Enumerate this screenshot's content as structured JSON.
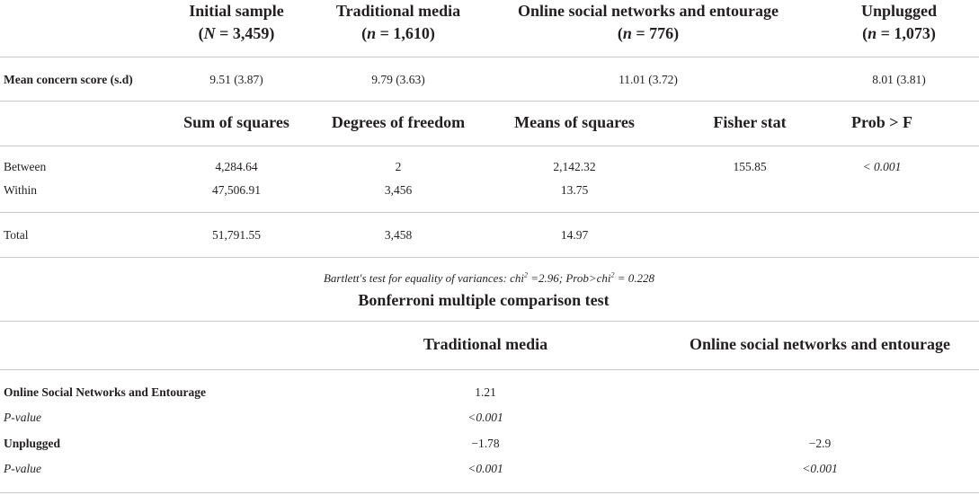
{
  "section1": {
    "columns": [
      {
        "line1": "Initial sample",
        "line2_pre": "(",
        "var": "N",
        "line2_post": " = 3,459)"
      },
      {
        "line1": "Traditional media",
        "line2_pre": "(",
        "var": "n",
        "line2_post": " = 1,610)"
      },
      {
        "line1": "Online social networks and entourage",
        "line2_pre": "(",
        "var": "n",
        "line2_post": " = 776)"
      },
      {
        "line1": "Unplugged",
        "line2_pre": "(",
        "var": "n",
        "line2_post": " = 1,073)"
      }
    ],
    "row_label": "Mean concern score (s.d)",
    "values": [
      "9.51 (3.87)",
      "9.79 (3.63)",
      "11.01 (3.72)",
      "8.01 (3.81)"
    ]
  },
  "anova": {
    "headers": [
      "Sum of squares",
      "Degrees of freedom",
      "Means of squares",
      "Fisher stat",
      "Prob > F"
    ],
    "rows": [
      {
        "label": "Between",
        "values": [
          "4,284.64",
          "2",
          "2,142.32",
          "155.85",
          "< 0.001"
        ]
      },
      {
        "label": "Within",
        "values": [
          "47,506.91",
          "3,456",
          "13.75",
          "",
          ""
        ]
      },
      {
        "label": "Total",
        "values": [
          "51,791.55",
          "3,458",
          "14.97",
          "",
          ""
        ]
      }
    ]
  },
  "bartlett": {
    "p1": "Bartlett's test for equality of variances: chi",
    "sup1": "2",
    "p2": " =2.96; Prob>chi",
    "sup2": "2",
    "p3": " = 0.228"
  },
  "bonferroni": {
    "title": "Bonferroni multiple comparison test",
    "headers": [
      "Traditional media",
      "Online social networks and entourage"
    ],
    "rows": [
      {
        "label": "Online Social Networks and Entourage",
        "values": [
          "1.21",
          ""
        ],
        "bold": true
      },
      {
        "label": "P-value",
        "values": [
          "<0.001",
          ""
        ],
        "italic": true
      },
      {
        "label": "Unplugged",
        "values": [
          "−1.78",
          "−2.9"
        ],
        "bold": true
      },
      {
        "label": "P-value",
        "values": [
          "<0.001",
          "<0.001"
        ],
        "italic": true
      }
    ]
  }
}
